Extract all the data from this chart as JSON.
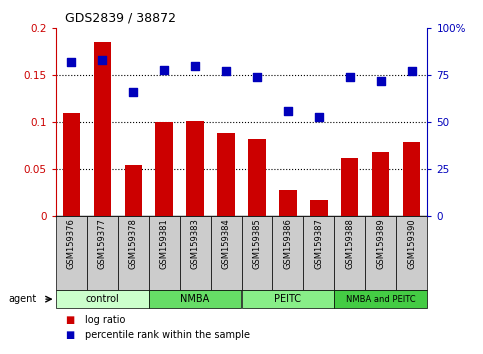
{
  "title": "GDS2839 / 38872",
  "samples": [
    "GSM159376",
    "GSM159377",
    "GSM159378",
    "GSM159381",
    "GSM159383",
    "GSM159384",
    "GSM159385",
    "GSM159386",
    "GSM159387",
    "GSM159388",
    "GSM159389",
    "GSM159390"
  ],
  "log_ratio": [
    0.11,
    0.185,
    0.054,
    0.1,
    0.101,
    0.088,
    0.082,
    0.028,
    0.017,
    0.062,
    0.068,
    0.079
  ],
  "percentile_rank": [
    82,
    83,
    66,
    78,
    80,
    77,
    74,
    56,
    53,
    74,
    72,
    77
  ],
  "bar_color": "#CC0000",
  "dot_color": "#0000BB",
  "groups": [
    {
      "label": "control",
      "start": 0,
      "end": 3,
      "color": "#ccffcc"
    },
    {
      "label": "NMBA",
      "start": 3,
      "end": 6,
      "color": "#66dd66"
    },
    {
      "label": "PEITC",
      "start": 6,
      "end": 9,
      "color": "#88ee88"
    },
    {
      "label": "NMBA and PEITC",
      "start": 9,
      "end": 12,
      "color": "#44cc44"
    }
  ],
  "ylim_left": [
    0,
    0.2
  ],
  "ylim_right": [
    0,
    100
  ],
  "yticks_left": [
    0,
    0.05,
    0.1,
    0.15,
    0.2
  ],
  "ytick_labels_left": [
    "0",
    "0.05",
    "0.1",
    "0.15",
    "0.2"
  ],
  "yticks_right": [
    0,
    25,
    50,
    75,
    100
  ],
  "ytick_labels_right": [
    "0",
    "25",
    "50",
    "75",
    "100%"
  ],
  "hlines": [
    0.05,
    0.1,
    0.15
  ],
  "legend_items": [
    {
      "label": "log ratio",
      "color": "#CC0000"
    },
    {
      "label": "percentile rank within the sample",
      "color": "#0000BB"
    }
  ],
  "agent_label": "agent",
  "bar_width": 0.55,
  "dot_size": 30,
  "tick_bg_color": "#cccccc",
  "title_fontsize": 9
}
